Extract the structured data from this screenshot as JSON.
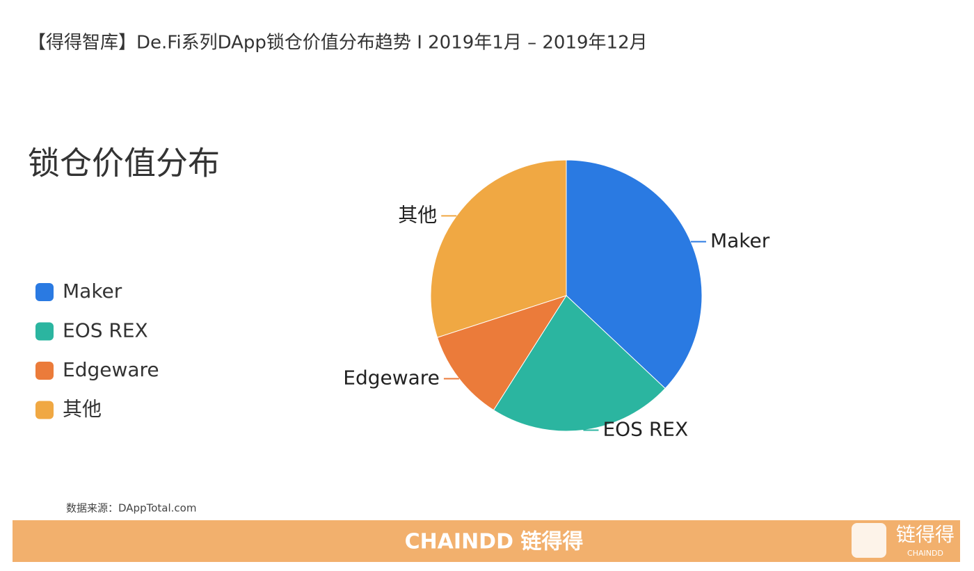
{
  "header": {
    "title": "【得得智库】De.Fi系列DApp锁仓价值分布趋势 I 2019年1月 – 2019年12月"
  },
  "chart_data": {
    "type": "pie",
    "title": "锁仓价值分布",
    "categories": [
      "Maker",
      "EOS REX",
      "Edgeware",
      "其他"
    ],
    "values": [
      37,
      22,
      11,
      30
    ],
    "colors": [
      "#2a7ae2",
      "#2bb5a0",
      "#eb7b3a",
      "#f0a843"
    ]
  },
  "source": "数据来源：DAppTotal.com",
  "footer": {
    "brand": "CHAINDD 链得得",
    "logo_text": "链得得",
    "logo_sub": "CHAINDD"
  }
}
